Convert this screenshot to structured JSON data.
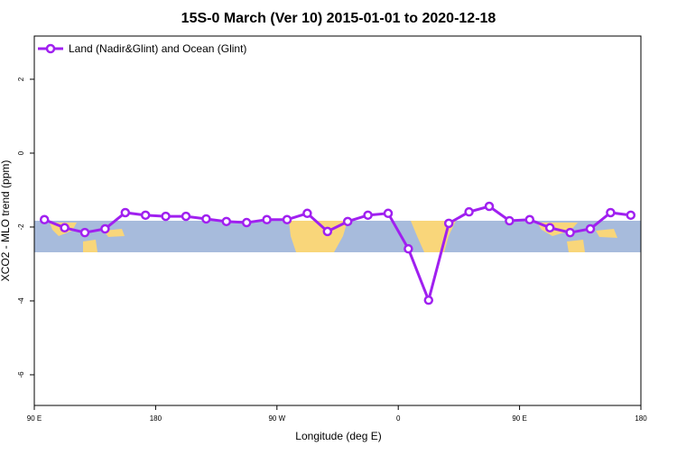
{
  "chart_data": {
    "type": "line",
    "title": "15S-0 March (Ver 10)   2015-01-01 to 2020-12-18",
    "xlabel": "Longitude (deg E)",
    "ylabel": "XCO2 - MLO trend (ppm)",
    "x": [
      97.5,
      112.5,
      127.5,
      142.5,
      157.5,
      172.5,
      187.5,
      202.5,
      217.5,
      232.5,
      247.5,
      262.5,
      277.5,
      292.5,
      307.5,
      322.5,
      337.5,
      352.5,
      367.5,
      382.5,
      397.5,
      412.5,
      427.5,
      442.5,
      457.5,
      472.5,
      487.5,
      502.5,
      517.5,
      532.5
    ],
    "series": [
      {
        "name": "Land (Nadir&Glint) and Ocean (Glint)",
        "color": "#a020f0",
        "values": [
          -1.8,
          -2.02,
          -2.15,
          -2.05,
          -1.61,
          -1.68,
          -1.71,
          -1.71,
          -1.78,
          -1.85,
          -1.88,
          -1.8,
          -1.8,
          -1.63,
          -2.12,
          -1.85,
          -1.68,
          -1.63,
          -2.59,
          -3.98,
          -1.9,
          -1.59,
          -1.44,
          -1.83,
          -1.8,
          -2.02,
          -2.15,
          -2.05,
          -1.61,
          -1.68
        ]
      }
    ],
    "xlim": [
      90,
      540
    ],
    "xticks": [
      {
        "value": 90,
        "label": "90 E"
      },
      180,
      {
        "value": 270,
        "label": "90 W"
      },
      {
        "value": 360,
        "label": "0"
      },
      {
        "value": 450,
        "label": "90 E"
      },
      {
        "value": 540,
        "label": "180"
      }
    ],
    "ylim": [
      -6.83,
      3.17
    ],
    "yticks": [
      2,
      0,
      -2,
      -4,
      -6
    ],
    "legend": "top-left",
    "grid": false
  }
}
